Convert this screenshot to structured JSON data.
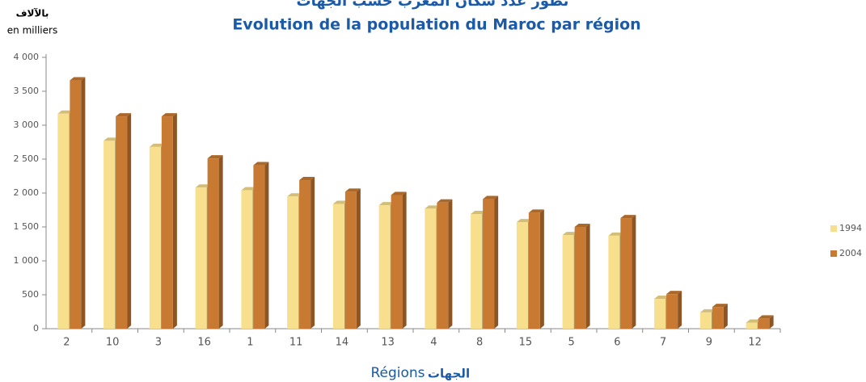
{
  "chart_data": {
    "type": "bar",
    "title_ar": "تطور عدد سكان المغرب حسب الجهات",
    "title": "Evolution de la population du Maroc par région",
    "unit_ar": "بالآلاف",
    "unit": "en milliers",
    "xlabel": "Régions",
    "xlabel_ar": "الجهات",
    "categories": [
      "2",
      "10",
      "3",
      "16",
      "1",
      "11",
      "14",
      "13",
      "4",
      "8",
      "15",
      "5",
      "6",
      "7",
      "9",
      "12"
    ],
    "series": [
      {
        "name": "1994",
        "color": "#f8df8e",
        "values": [
          3170,
          2770,
          2680,
          2080,
          2040,
          1950,
          1840,
          1820,
          1770,
          1690,
          1570,
          1380,
          1370,
          440,
          240,
          90
        ]
      },
      {
        "name": "2004",
        "color": "#c97a32",
        "values": [
          3660,
          3130,
          3130,
          2510,
          2410,
          2190,
          2020,
          1970,
          1860,
          1910,
          1710,
          1500,
          1630,
          510,
          320,
          150
        ]
      }
    ],
    "ylim": [
      0,
      4000
    ],
    "yticks": [
      0,
      500,
      {
        "value": 1000,
        "label": "1 000"
      },
      {
        "value": 1500,
        "label": "1 500"
      },
      {
        "value": 2000,
        "label": "2 000"
      },
      {
        "value": 2500,
        "label": "2 500"
      },
      {
        "value": 3000,
        "label": "3 000"
      },
      {
        "value": 3500,
        "label": "3 500"
      },
      {
        "value": 4000,
        "label": "4 000"
      }
    ],
    "legend": "right"
  }
}
